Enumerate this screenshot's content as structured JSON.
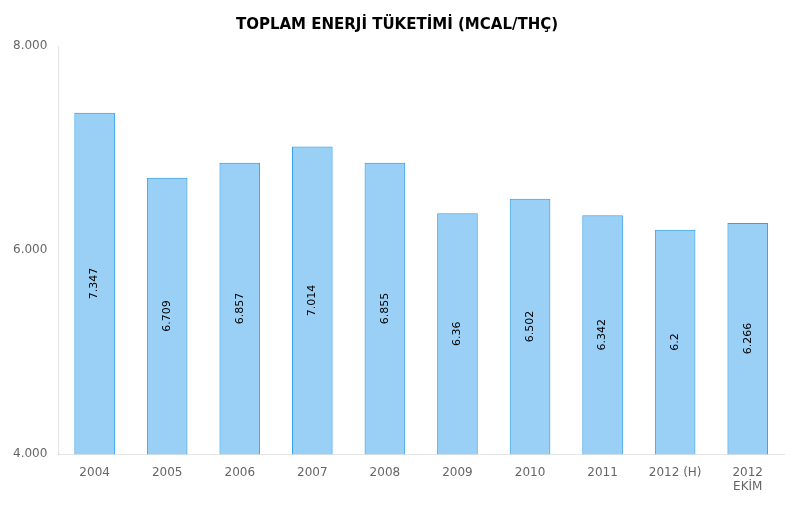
{
  "chart_data": {
    "type": "bar",
    "title": "TOPLAM ENERJİ TÜKETİMİ (MCAL/THÇ)",
    "categories": [
      "2004",
      "2005",
      "2006",
      "2007",
      "2008",
      "2009",
      "2010",
      "2011",
      "2012 (H)",
      "2012\nEKİM"
    ],
    "values": [
      7.347,
      6.709,
      6.857,
      7.014,
      6.855,
      6.36,
      6.502,
      6.342,
      6.2,
      6.266
    ],
    "ylim": [
      4.0,
      8.0
    ],
    "yticks": [
      {
        "value": 4.0,
        "label": "4.000"
      },
      {
        "value": 6.0,
        "label": "6.000"
      },
      {
        "value": 8.0,
        "label": "8.000"
      }
    ],
    "grid": false,
    "data_labels": true
  }
}
